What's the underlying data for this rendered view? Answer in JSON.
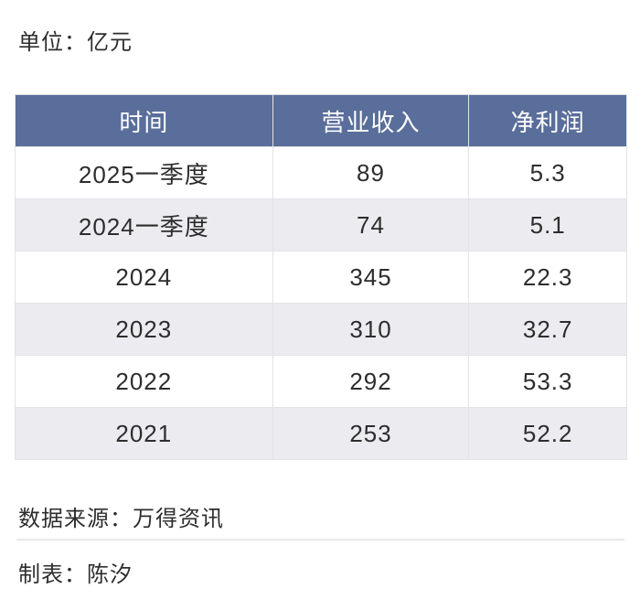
{
  "page": {
    "unit_label": "单位：亿元",
    "source_label": "数据来源：万得资讯",
    "author_label": "制表：陈汐"
  },
  "chart_data": {
    "type": "table",
    "title": "单位：亿元",
    "columns": [
      "时间",
      "营业收入",
      "净利润"
    ],
    "rows": [
      [
        "2025一季度",
        "89",
        "5.3"
      ],
      [
        "2024一季度",
        "74",
        "5.1"
      ],
      [
        "2024",
        "345",
        "22.3"
      ],
      [
        "2023",
        "310",
        "32.7"
      ],
      [
        "2022",
        "292",
        "53.3"
      ],
      [
        "2021",
        "253",
        "52.2"
      ]
    ],
    "source": "万得资讯",
    "author": "陈汐"
  },
  "colors": {
    "header_bg": "#5A6E9B",
    "header_text": "#FFFFFF",
    "row_bg": "#FFFFFF",
    "row_alt_bg": "#ECECF0",
    "border": "#E3E3E7",
    "text": "#2D2D2D",
    "divider": "#E8E8E8"
  }
}
